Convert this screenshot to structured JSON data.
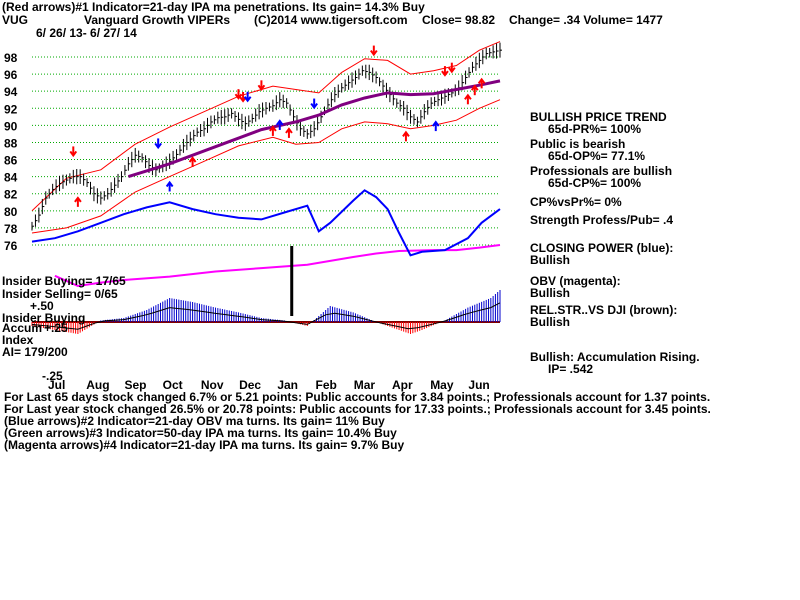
{
  "header": {
    "line1": "(Red arrows)#1 Indicator=21-day IPA ma penetrations. Its gain= 14.3% Buy",
    "symbol": "VUG",
    "name": "Vanguard Growth VIPERs",
    "copyright": "(C)2014 www.tigersoft.com",
    "close": "Close= 98.82",
    "change": "Change= .34 Volume= 1477",
    "dates": "6/ 26/ 13- 6/ 27/ 14"
  },
  "side_notes": {
    "trend_title": "BULLISH PRICE TREND",
    "pr": "65d-PR%= 100%",
    "public": "Public is bearish",
    "op": "65d-OP%= 77.1%",
    "prof": "Professionals are bullish",
    "cp": "65d-CP%= 100%",
    "cpvspr": "CP%vsPr%= 0%",
    "strength": "Strength Profess/Pub= .4",
    "closing_power": "CLOSING POWER (blue):",
    "closing_power_val": "Bullish",
    "obv": "OBV (magenta):",
    "obv_val": "Bullish",
    "relstr": "REL.STR..VS DJI (brown):",
    "relstr_val": "Bullish",
    "accum": "Bullish: Accumulation Rising.",
    "ip": "IP= .542"
  },
  "left_notes": {
    "insider_buying": "Insider Buying= 17/65",
    "insider_selling": "Insider Selling= 0/65",
    "plus50": "+.50",
    "insider_buying2": "Insider Buying",
    "accum_label": "Accum",
    "plus25": "+.25",
    "index": "Index",
    "ai": "AI= 179/200",
    "minus25": "-.25"
  },
  "footer": {
    "line1": "For Last 65 days stock changed 6.7% or 5.21 points: Public accounts for 3.84 points.; Professionals account for 1.37 points.",
    "line2": "For Last year stock changed 26.5% or 20.78 points: Public accounts for 17.33 points.; Professionals account for 3.45 points.",
    "line3": "(Blue arrows)#2 Indicator=21-day OBV ma turns. Its gain= 11% Buy",
    "line4": "(Green arrows)#3 Indicator=50-day IPA ma turns. Its gain= 10.4% Buy",
    "line5": "(Magenta arrows)#4 Indicator=21-day IPA ma turns. Its gain= 9.7% Buy"
  },
  "colors": {
    "price": "#000000",
    "ma": "#800080",
    "band": "#ff0000",
    "cp": "#0000ff",
    "obv": "#ff00ff",
    "relstr": "#800000",
    "accum_bar": "#0000cc",
    "accum_fill": "#ff0000",
    "grid": "#00aa00",
    "cp_ma": "#ff0000"
  },
  "chart_data": {
    "type": "line",
    "title": "Vanguard Growth VIPERs",
    "x_range": [
      "2013-06-26",
      "2014-06-27"
    ],
    "ylim": [
      76,
      100
    ],
    "y_ticks": [
      76,
      78,
      80,
      82,
      84,
      86,
      88,
      90,
      92,
      94,
      96,
      98
    ],
    "month_ticks": [
      "Jul",
      "Aug",
      "Sep",
      "Oct",
      "Nov",
      "Dec",
      "Jan",
      "Feb",
      "Mar",
      "Apr",
      "May",
      "Jun"
    ],
    "grid": true,
    "price_points": [
      [
        0,
        78.2
      ],
      [
        3,
        79.5
      ],
      [
        6,
        81.5
      ],
      [
        9,
        82.5
      ],
      [
        12,
        83.2
      ],
      [
        15,
        83.6
      ],
      [
        18,
        84.0
      ],
      [
        21,
        84.0
      ],
      [
        24,
        83.3
      ],
      [
        27,
        82.0
      ],
      [
        30,
        81.5
      ],
      [
        33,
        82.0
      ],
      [
        36,
        83.0
      ],
      [
        39,
        84.0
      ],
      [
        42,
        85.5
      ],
      [
        45,
        86.5
      ],
      [
        48,
        86.2
      ],
      [
        51,
        85.3
      ],
      [
        54,
        84.8
      ],
      [
        57,
        85.2
      ],
      [
        60,
        85.8
      ],
      [
        63,
        86.6
      ],
      [
        66,
        87.6
      ],
      [
        69,
        88.4
      ],
      [
        72,
        89.2
      ],
      [
        75,
        89.6
      ],
      [
        78,
        90.4
      ],
      [
        81,
        90.9
      ],
      [
        84,
        91.0
      ],
      [
        87,
        91.4
      ],
      [
        90,
        90.7
      ],
      [
        93,
        90.2
      ],
      [
        96,
        90.8
      ],
      [
        99,
        91.6
      ],
      [
        102,
        92.0
      ],
      [
        105,
        92.3
      ],
      [
        108,
        93.0
      ],
      [
        111,
        92.6
      ],
      [
        114,
        91.0
      ],
      [
        117,
        89.6
      ],
      [
        120,
        89.0
      ],
      [
        123,
        89.6
      ],
      [
        126,
        91.0
      ],
      [
        129,
        92.4
      ],
      [
        132,
        93.6
      ],
      [
        135,
        94.4
      ],
      [
        138,
        95.0
      ],
      [
        141,
        95.6
      ],
      [
        144,
        96.4
      ],
      [
        147,
        96.2
      ],
      [
        150,
        95.6
      ],
      [
        153,
        94.6
      ],
      [
        156,
        93.6
      ],
      [
        159,
        92.6
      ],
      [
        162,
        92.0
      ],
      [
        165,
        91.0
      ],
      [
        168,
        90.4
      ],
      [
        171,
        91.6
      ],
      [
        174,
        92.6
      ],
      [
        177,
        93.0
      ],
      [
        180,
        93.4
      ],
      [
        183,
        93.8
      ],
      [
        186,
        94.4
      ],
      [
        189,
        95.6
      ],
      [
        192,
        96.8
      ],
      [
        195,
        97.6
      ],
      [
        198,
        98.4
      ],
      [
        201,
        98.6
      ],
      [
        204,
        98.8
      ]
    ],
    "ma_points": [
      [
        42,
        84.0
      ],
      [
        60,
        85.5
      ],
      [
        80,
        87.5
      ],
      [
        100,
        89.5
      ],
      [
        115,
        90.4
      ],
      [
        125,
        91.2
      ],
      [
        135,
        92.4
      ],
      [
        145,
        93.2
      ],
      [
        155,
        93.8
      ],
      [
        165,
        93.6
      ],
      [
        175,
        93.7
      ],
      [
        185,
        94.2
      ],
      [
        195,
        94.7
      ],
      [
        204,
        95.2
      ]
    ],
    "upper_band": [
      [
        0,
        80.0
      ],
      [
        15,
        83.8
      ],
      [
        30,
        84.8
      ],
      [
        45,
        87.8
      ],
      [
        60,
        89.8
      ],
      [
        75,
        91.6
      ],
      [
        90,
        93.4
      ],
      [
        105,
        94.6
      ],
      [
        115,
        94.2
      ],
      [
        125,
        93.8
      ],
      [
        135,
        96.2
      ],
      [
        145,
        97.8
      ],
      [
        155,
        97.6
      ],
      [
        165,
        96.0
      ],
      [
        175,
        96.4
      ],
      [
        185,
        97.0
      ],
      [
        195,
        98.8
      ],
      [
        204,
        99.8
      ]
    ],
    "lower_band": [
      [
        0,
        77.4
      ],
      [
        15,
        78.0
      ],
      [
        30,
        79.4
      ],
      [
        45,
        82.2
      ],
      [
        60,
        84.0
      ],
      [
        75,
        85.8
      ],
      [
        90,
        87.6
      ],
      [
        105,
        88.6
      ],
      [
        115,
        87.8
      ],
      [
        125,
        88.0
      ],
      [
        135,
        89.6
      ],
      [
        145,
        90.4
      ],
      [
        155,
        90.2
      ],
      [
        165,
        89.6
      ],
      [
        175,
        90.0
      ],
      [
        185,
        90.6
      ],
      [
        195,
        92.0
      ],
      [
        204,
        93.0
      ]
    ],
    "red_arrows": [
      [
        18,
        "down"
      ],
      [
        20,
        "up"
      ],
      [
        70,
        "up"
      ],
      [
        90,
        "down"
      ],
      [
        92,
        "down"
      ],
      [
        100,
        "down"
      ],
      [
        105,
        "up"
      ],
      [
        112,
        "up"
      ],
      [
        149,
        "down"
      ],
      [
        163,
        "up"
      ],
      [
        180,
        "down"
      ],
      [
        183,
        "down"
      ],
      [
        190,
        "up"
      ],
      [
        193,
        "up"
      ],
      [
        196,
        "up"
      ]
    ],
    "blue_arrows": [
      [
        55,
        "down"
      ],
      [
        60,
        "up"
      ],
      [
        94,
        "down"
      ],
      [
        108,
        "up"
      ],
      [
        123,
        "down"
      ],
      [
        176,
        "up"
      ]
    ],
    "closing_power": [
      [
        0,
        76.4
      ],
      [
        10,
        76.8
      ],
      [
        20,
        77.6
      ],
      [
        30,
        78.6
      ],
      [
        40,
        79.6
      ],
      [
        50,
        80.4
      ],
      [
        60,
        81.0
      ],
      [
        70,
        80.2
      ],
      [
        80,
        79.6
      ],
      [
        90,
        79.2
      ],
      [
        100,
        79.0
      ],
      [
        110,
        79.8
      ],
      [
        120,
        80.6
      ],
      [
        125,
        77.6
      ],
      [
        130,
        78.6
      ],
      [
        140,
        81.2
      ],
      [
        145,
        82.4
      ],
      [
        150,
        81.6
      ],
      [
        155,
        80.2
      ],
      [
        160,
        77.4
      ],
      [
        165,
        74.8
      ],
      [
        170,
        75.2
      ],
      [
        180,
        75.4
      ],
      [
        190,
        76.8
      ],
      [
        196,
        78.6
      ],
      [
        204,
        80.2
      ]
    ],
    "obv": [
      [
        10,
        72.4
      ],
      [
        20,
        71.2
      ],
      [
        30,
        71.6
      ],
      [
        40,
        71.9
      ],
      [
        60,
        72.3
      ],
      [
        80,
        72.9
      ],
      [
        100,
        73.3
      ],
      [
        120,
        73.7
      ],
      [
        140,
        74.6
      ],
      [
        150,
        75.0
      ],
      [
        160,
        75.3
      ],
      [
        175,
        75.4
      ],
      [
        185,
        75.4
      ],
      [
        195,
        75.7
      ],
      [
        204,
        76.0
      ]
    ],
    "accum_index": [
      [
        0,
        -0.05
      ],
      [
        10,
        -0.1
      ],
      [
        20,
        -0.15
      ],
      [
        30,
        0.02
      ],
      [
        40,
        0.05
      ],
      [
        50,
        0.15
      ],
      [
        60,
        0.3
      ],
      [
        70,
        0.25
      ],
      [
        80,
        0.18
      ],
      [
        90,
        0.12
      ],
      [
        100,
        0.05
      ],
      [
        110,
        0.02
      ],
      [
        120,
        -0.05
      ],
      [
        130,
        0.2
      ],
      [
        140,
        0.12
      ],
      [
        150,
        0.0
      ],
      [
        160,
        -0.1
      ],
      [
        165,
        -0.15
      ],
      [
        170,
        -0.1
      ],
      [
        180,
        0.02
      ],
      [
        190,
        0.18
      ],
      [
        200,
        0.3
      ],
      [
        204,
        0.4
      ]
    ],
    "ylabel": ""
  }
}
